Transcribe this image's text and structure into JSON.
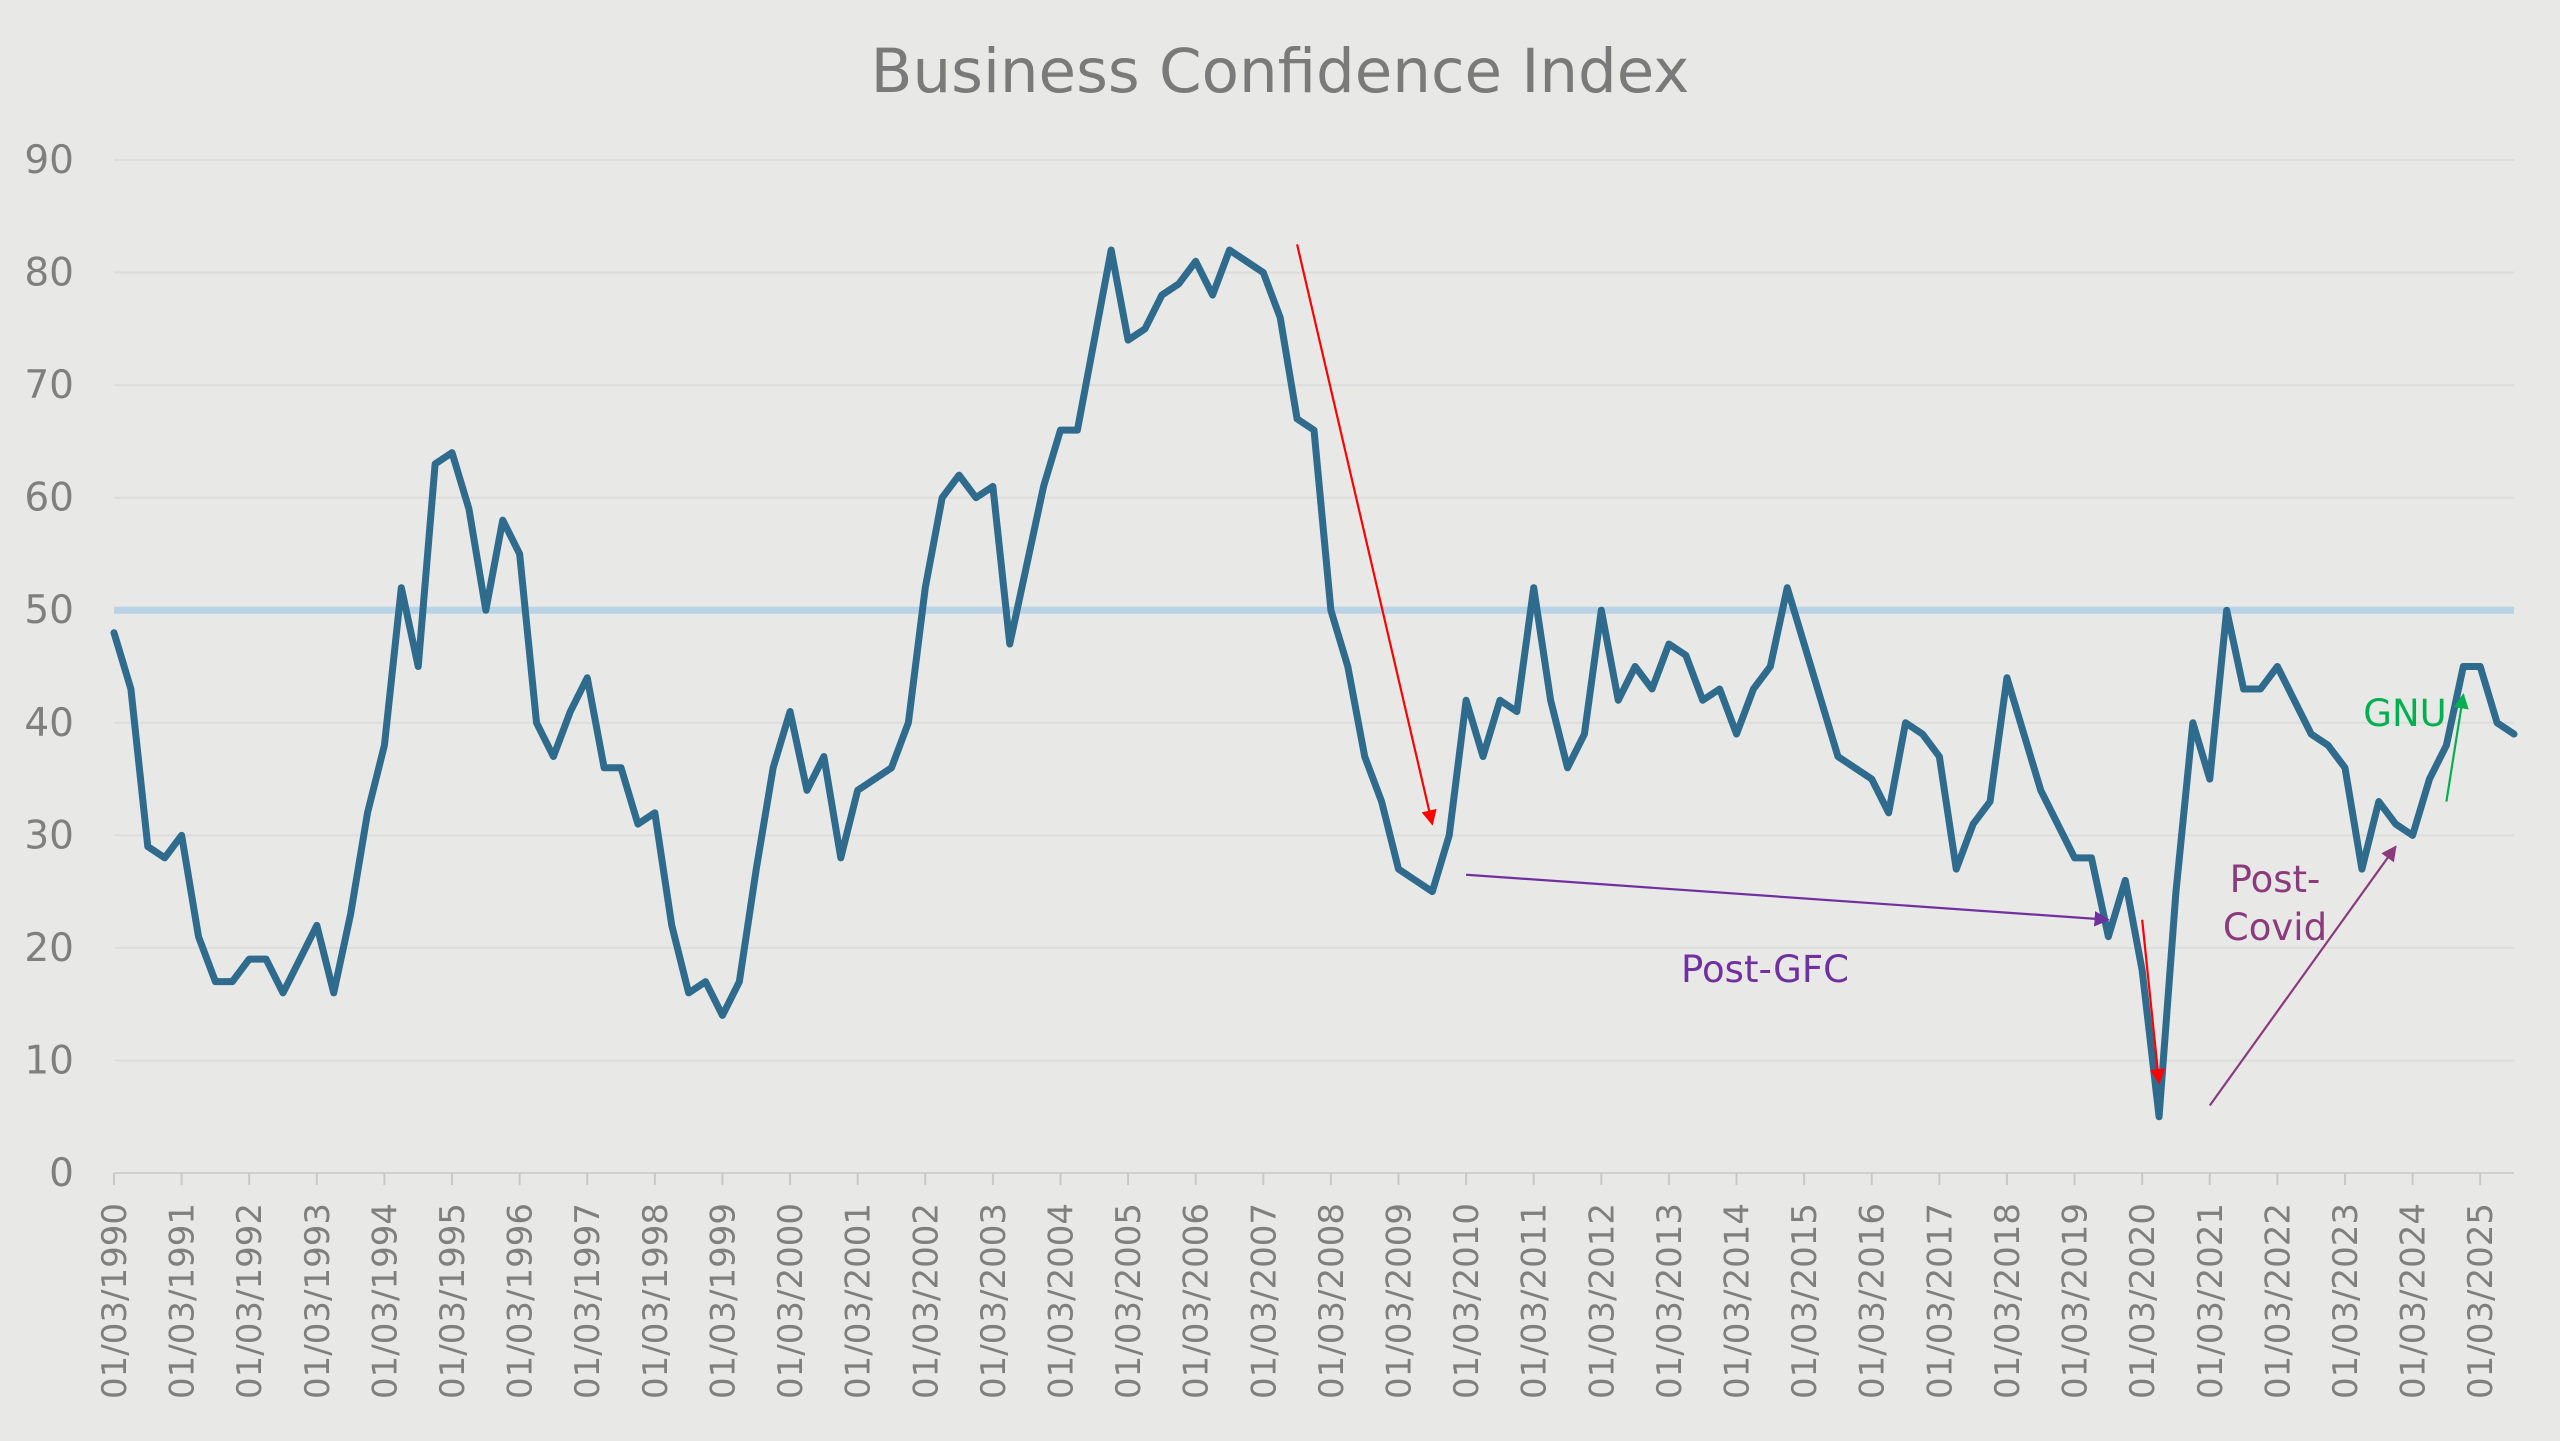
{
  "chart_data": {
    "type": "line",
    "title": "Business Confidence Index",
    "xlabel": "",
    "ylabel": "",
    "ylim": [
      0,
      90
    ],
    "yticks": [
      0,
      10,
      20,
      30,
      40,
      50,
      60,
      70,
      80,
      90
    ],
    "grid": "horizontal",
    "x_tick_labels": [
      "01/03/1990",
      "01/03/1991",
      "01/03/1992",
      "01/03/1993",
      "01/03/1994",
      "01/03/1995",
      "01/03/1996",
      "01/03/1997",
      "01/03/1998",
      "01/03/1999",
      "01/03/2000",
      "01/03/2001",
      "01/03/2002",
      "01/03/2003",
      "01/03/2004",
      "01/03/2005",
      "01/03/2006",
      "01/03/2007",
      "01/03/2008",
      "01/03/2009",
      "01/03/2010",
      "01/03/2011",
      "01/03/2012",
      "01/03/2013",
      "01/03/2014",
      "01/03/2015",
      "01/03/2016",
      "01/03/2017",
      "01/03/2018",
      "01/03/2019",
      "01/03/2020",
      "01/03/2021",
      "01/03/2022",
      "01/03/2023",
      "01/03/2024",
      "01/03/2025"
    ],
    "x_start": "1990-Q1",
    "frequency": "quarterly",
    "series": [
      {
        "name": "",
        "color": "#2e6b8d",
        "values": [
          48,
          43,
          29,
          28,
          30,
          21,
          17,
          17,
          19,
          19,
          16,
          19,
          22,
          16,
          23,
          32,
          38,
          52,
          45,
          63,
          64,
          59,
          50,
          58,
          55,
          40,
          37,
          41,
          44,
          36,
          36,
          31,
          32,
          22,
          16,
          17,
          14,
          17,
          27,
          36,
          41,
          34,
          37,
          28,
          34,
          35,
          36,
          40,
          52,
          60,
          62,
          60,
          61,
          47,
          54,
          61,
          66,
          66,
          74,
          82,
          74,
          75,
          78,
          79,
          81,
          78,
          82,
          81,
          80,
          76,
          67,
          66,
          50,
          45,
          37,
          33,
          27,
          26,
          25,
          30,
          42,
          37,
          42,
          41,
          52,
          42,
          36,
          39,
          50,
          42,
          45,
          43,
          47,
          46,
          42,
          43,
          39,
          43,
          45,
          52,
          47,
          42,
          37,
          36,
          35,
          32,
          40,
          39,
          37,
          27,
          31,
          33,
          44,
          39,
          34,
          31,
          28,
          28,
          21,
          26,
          18,
          5,
          25,
          40,
          35,
          50,
          43,
          43,
          45,
          42,
          39,
          38,
          36,
          27,
          33,
          31,
          30,
          35,
          38,
          45,
          45,
          40,
          39
        ]
      }
    ],
    "reference_line": {
      "value": 50,
      "color": "#b8d2e6"
    },
    "annotations": [
      {
        "label": "",
        "color": "#ff0000",
        "from": [
          "2007-Q3",
          82.5
        ],
        "to": [
          "2009-Q3",
          31
        ]
      },
      {
        "label": "",
        "color": "#ff0000",
        "from": [
          "2020-Q1",
          22.5
        ],
        "to": [
          "2020-Q2",
          8
        ]
      },
      {
        "label": "Post-GFC",
        "color": "#7030a0",
        "from": [
          "2010-Q1",
          26.5
        ],
        "to": [
          "2019-Q3",
          22.5
        ]
      },
      {
        "label": "Post-\nCovid",
        "color": "#8b3a7e",
        "from": [
          "2021-Q1",
          6
        ],
        "to": [
          "2023-Q4",
          29
        ]
      },
      {
        "label": "GNU",
        "color": "#00b050",
        "from": [
          "2024-Q3",
          33
        ],
        "to": [
          "2024-Q4",
          42.5
        ]
      }
    ]
  }
}
